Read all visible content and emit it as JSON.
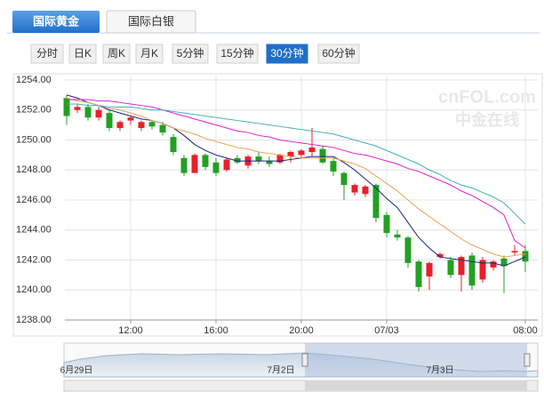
{
  "tabs": [
    "国际黄金",
    "国际白银"
  ],
  "period_buttons": [
    "分时",
    "日K",
    "周K",
    "月K",
    "5分钟",
    "15分钟",
    "30分钟",
    "60分钟"
  ],
  "watermark": {
    "brand": "cnFOL.com",
    "name": "中金在线"
  },
  "navigator": {
    "labels": [
      "6月29日",
      "7月2日",
      "7月3日"
    ]
  },
  "chart_data": {
    "type": "candlestick",
    "up_color": "#e8202a",
    "down_color": "#22a022",
    "grid": true,
    "categories": [
      null,
      null,
      null,
      null,
      null,
      null,
      "12:00",
      null,
      null,
      null,
      null,
      null,
      null,
      null,
      "16:00",
      null,
      null,
      null,
      null,
      null,
      null,
      null,
      "20:00",
      null,
      null,
      null,
      null,
      null,
      null,
      null,
      "07/03",
      null,
      null,
      null,
      null,
      null,
      null,
      null,
      null,
      null,
      null,
      null,
      null,
      "08:00"
    ],
    "open": [
      1252.8,
      1252.0,
      1252.2,
      1251.5,
      1251.8,
      1250.8,
      1251.3,
      1250.8,
      1251.2,
      1251.0,
      1250.2,
      1248.8,
      1247.8,
      1249.0,
      1248.5,
      1248.0,
      1248.8,
      1248.3,
      1248.9,
      1248.6,
      1248.5,
      1248.9,
      1249.0,
      1249.2,
      1249.4,
      1248.6,
      1247.8,
      1246.5,
      1246.4,
      1247.0,
      1245.0,
      1243.7,
      1243.5,
      1241.9,
      1240.9,
      1242.2,
      1242.0,
      1241.0,
      1242.3,
      1240.7,
      1241.5,
      1242.1,
      1242.5,
      1242.6
    ],
    "high": [
      1253.0,
      1252.4,
      1252.4,
      1252.2,
      1252.0,
      1251.3,
      1251.6,
      1251.3,
      1251.3,
      1251.2,
      1250.4,
      1249.0,
      1249.1,
      1249.1,
      1248.8,
      1248.8,
      1249.0,
      1249.0,
      1249.2,
      1248.9,
      1249.1,
      1249.3,
      1249.4,
      1250.8,
      1249.6,
      1248.8,
      1247.9,
      1247.1,
      1247.0,
      1247.1,
      1245.2,
      1244.0,
      1243.6,
      1242.0,
      1241.9,
      1242.5,
      1242.2,
      1242.3,
      1242.5,
      1242.2,
      1242.0,
      1242.3,
      1243.0,
      1243.0
    ],
    "low": [
      1251.0,
      1251.8,
      1251.3,
      1251.3,
      1250.6,
      1250.6,
      1251.0,
      1250.6,
      1250.7,
      1250.3,
      1249.0,
      1247.6,
      1247.8,
      1248.0,
      1247.6,
      1247.9,
      1248.4,
      1248.1,
      1248.4,
      1248.2,
      1248.4,
      1248.5,
      1248.8,
      1248.9,
      1248.4,
      1247.6,
      1246.0,
      1246.3,
      1246.2,
      1244.5,
      1243.5,
      1243.3,
      1241.5,
      1239.9,
      1240.0,
      1242.1,
      1240.8,
      1239.9,
      1240.0,
      1240.5,
      1241.3,
      1239.8,
      1242.3,
      1241.2
    ],
    "close": [
      1251.6,
      1252.2,
      1251.5,
      1252.0,
      1250.8,
      1251.2,
      1251.5,
      1251.2,
      1250.9,
      1250.5,
      1249.2,
      1247.8,
      1249.0,
      1248.2,
      1247.8,
      1248.7,
      1248.5,
      1248.9,
      1248.6,
      1248.4,
      1249.0,
      1249.2,
      1249.3,
      1249.5,
      1248.5,
      1247.9,
      1247.0,
      1247.0,
      1246.9,
      1244.8,
      1243.8,
      1243.5,
      1241.8,
      1240.2,
      1241.8,
      1242.4,
      1241.0,
      1242.2,
      1240.3,
      1242.0,
      1241.9,
      1241.6,
      1242.6,
      1241.9
    ],
    "series": [
      {
        "color": "#1a237e",
        "values": [
          1253.0,
          1252.8,
          1252.5,
          1252.3,
          1252.0,
          1251.8,
          1251.6,
          1251.4,
          1251.3,
          1251.1,
          1250.8,
          1250.3,
          1249.7,
          1249.3,
          1249.0,
          1248.8,
          1248.6,
          1248.6,
          1248.6,
          1248.6,
          1248.6,
          1248.7,
          1248.8,
          1248.9,
          1248.9,
          1248.9,
          1248.5,
          1248.0,
          1247.4,
          1246.8,
          1246.1,
          1245.5,
          1244.5,
          1243.5,
          1242.8,
          1242.2,
          1242.1,
          1242.0,
          1241.9,
          1241.8,
          1241.8,
          1241.6,
          1241.9,
          1242.2
        ]
      },
      {
        "color": "#f0a050",
        "values": [
          1252.8,
          1252.6,
          1252.5,
          1252.3,
          1252.1,
          1252.0,
          1251.8,
          1251.6,
          1251.3,
          1251.1,
          1250.8,
          1250.6,
          1250.4,
          1250.1,
          1249.9,
          1249.7,
          1249.5,
          1249.4,
          1249.2,
          1249.1,
          1249.0,
          1248.9,
          1248.8,
          1248.8,
          1248.8,
          1248.8,
          1248.6,
          1248.4,
          1248.1,
          1247.6,
          1247.1,
          1246.6,
          1246.0,
          1245.4,
          1244.9,
          1244.4,
          1243.9,
          1243.4,
          1243.0,
          1242.7,
          1242.4,
          1242.2,
          1242.3,
          1242.4
        ]
      },
      {
        "color": "#e020d0",
        "values": [
          1252.7,
          1252.7,
          1252.7,
          1252.6,
          1252.6,
          1252.5,
          1252.4,
          1252.3,
          1252.2,
          1252.0,
          1251.8,
          1251.6,
          1251.4,
          1251.2,
          1251.0,
          1250.8,
          1250.6,
          1250.5,
          1250.3,
          1250.2,
          1250.0,
          1249.9,
          1249.8,
          1249.7,
          1249.6,
          1249.5,
          1249.3,
          1249.1,
          1249.0,
          1248.8,
          1248.6,
          1248.4,
          1248.1,
          1247.9,
          1247.6,
          1247.3,
          1247.0,
          1246.6,
          1246.3,
          1245.9,
          1245.5,
          1245.0,
          1243.3,
          1242.8
        ]
      },
      {
        "color": "#40b0b0",
        "values": [
          1252.4,
          1252.4,
          1252.3,
          1252.3,
          1252.2,
          1252.2,
          1252.2,
          1252.1,
          1252.0,
          1252.0,
          1251.9,
          1251.8,
          1251.7,
          1251.6,
          1251.5,
          1251.4,
          1251.3,
          1251.2,
          1251.1,
          1251.0,
          1250.9,
          1250.8,
          1250.7,
          1250.6,
          1250.5,
          1250.4,
          1250.2,
          1250.0,
          1249.8,
          1249.6,
          1249.3,
          1249.0,
          1248.7,
          1248.4,
          1248.0,
          1247.7,
          1247.3,
          1247.0,
          1246.8,
          1246.5,
          1246.2,
          1245.8,
          1245.1,
          1244.4
        ]
      }
    ],
    "ylim": [
      1238,
      1254
    ],
    "yticks": [
      {
        "value": 1238,
        "label": "1238.00"
      },
      {
        "value": 1240,
        "label": "1240.00"
      },
      {
        "value": 1242,
        "label": "1242.00"
      },
      {
        "value": 1244,
        "label": "1244.00"
      },
      {
        "value": 1246,
        "label": "1246.00"
      },
      {
        "value": 1248,
        "label": "1248.00"
      },
      {
        "value": 1250,
        "label": "1250.00"
      },
      {
        "value": 1252,
        "label": "1252.00"
      },
      {
        "value": 1254,
        "label": "1254.00"
      }
    ]
  }
}
